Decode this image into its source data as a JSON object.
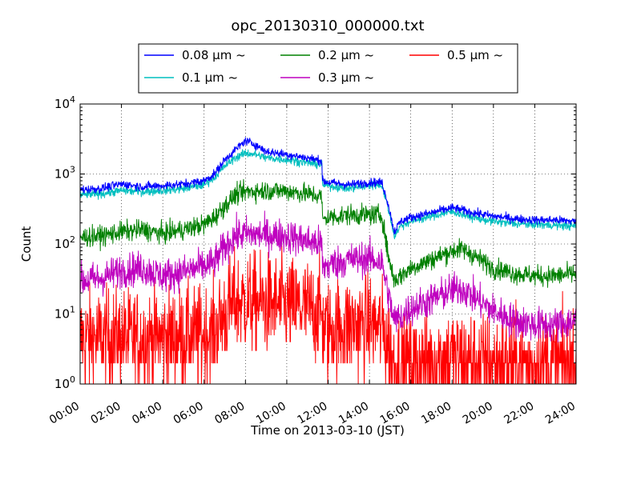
{
  "chart_data": {
    "type": "line",
    "title": "opc_20130310_000000.txt",
    "xlabel": "Time on 2013-03-10 (JST)",
    "ylabel": "Count",
    "x_range_hours": [
      0,
      24
    ],
    "x_ticks": [
      "00:00",
      "02:00",
      "04:00",
      "06:00",
      "08:00",
      "10:00",
      "12:00",
      "14:00",
      "16:00",
      "18:00",
      "20:00",
      "22:00",
      "24:00"
    ],
    "y_scale": "log",
    "ylim": [
      1,
      10000
    ],
    "y_ticks": [
      {
        "value": 1,
        "base": "10",
        "exp": "0"
      },
      {
        "value": 10,
        "base": "10",
        "exp": "1"
      },
      {
        "value": 100,
        "base": "10",
        "exp": "2"
      },
      {
        "value": 1000,
        "base": "10",
        "exp": "3"
      },
      {
        "value": 10000,
        "base": "10",
        "exp": "4"
      }
    ],
    "grid": true,
    "legend_position": "top-center, above plot",
    "series": [
      {
        "name": "0.08 μm ~",
        "color": "#0000ff",
        "noise": 0.03,
        "points": [
          [
            0,
            600
          ],
          [
            1,
            620
          ],
          [
            2,
            720
          ],
          [
            3,
            660
          ],
          [
            4,
            680
          ],
          [
            5,
            720
          ],
          [
            6,
            800
          ],
          [
            6.5,
            1000
          ],
          [
            7,
            1600
          ],
          [
            7.5,
            2200
          ],
          [
            8,
            3000
          ],
          [
            8.5,
            2600
          ],
          [
            9,
            2100
          ],
          [
            10,
            1900
          ],
          [
            11,
            1700
          ],
          [
            11.7,
            1550
          ],
          [
            11.72,
            800
          ],
          [
            12,
            760
          ],
          [
            13,
            700
          ],
          [
            14,
            760
          ],
          [
            14.6,
            760
          ],
          [
            14.9,
            380
          ],
          [
            15.2,
            150
          ],
          [
            15.5,
            210
          ],
          [
            16,
            240
          ],
          [
            17,
            280
          ],
          [
            18,
            330
          ],
          [
            19,
            280
          ],
          [
            20,
            250
          ],
          [
            21,
            230
          ],
          [
            22,
            220
          ],
          [
            23,
            220
          ],
          [
            24,
            210
          ]
        ]
      },
      {
        "name": "0.1 μm ~",
        "color": "#00bfbf",
        "noise": 0.03,
        "points": [
          [
            0,
            500
          ],
          [
            1,
            520
          ],
          [
            2,
            580
          ],
          [
            3,
            560
          ],
          [
            4,
            580
          ],
          [
            5,
            620
          ],
          [
            6,
            700
          ],
          [
            6.5,
            900
          ],
          [
            7,
            1300
          ],
          [
            7.5,
            1700
          ],
          [
            8,
            2000
          ],
          [
            8.5,
            1900
          ],
          [
            9,
            1700
          ],
          [
            10,
            1600
          ],
          [
            11,
            1450
          ],
          [
            11.7,
            1350
          ],
          [
            11.72,
            700
          ],
          [
            12,
            680
          ],
          [
            13,
            620
          ],
          [
            14,
            680
          ],
          [
            14.6,
            700
          ],
          [
            14.9,
            330
          ],
          [
            15.2,
            130
          ],
          [
            15.5,
            180
          ],
          [
            16,
            210
          ],
          [
            17,
            250
          ],
          [
            18,
            290
          ],
          [
            19,
            240
          ],
          [
            20,
            210
          ],
          [
            21,
            195
          ],
          [
            22,
            190
          ],
          [
            23,
            185
          ],
          [
            24,
            180
          ]
        ]
      },
      {
        "name": "0.2 μm ~",
        "color": "#008000",
        "noise": 0.07,
        "points": [
          [
            0,
            125
          ],
          [
            1,
            130
          ],
          [
            2,
            150
          ],
          [
            3,
            160
          ],
          [
            4,
            140
          ],
          [
            5,
            160
          ],
          [
            6,
            190
          ],
          [
            6.5,
            240
          ],
          [
            7,
            350
          ],
          [
            7.5,
            500
          ],
          [
            8,
            560
          ],
          [
            9,
            580
          ],
          [
            10,
            570
          ],
          [
            11,
            520
          ],
          [
            11.7,
            480
          ],
          [
            11.72,
            220
          ],
          [
            12,
            240
          ],
          [
            13,
            260
          ],
          [
            14,
            260
          ],
          [
            14.6,
            260
          ],
          [
            14.9,
            70
          ],
          [
            15.2,
            30
          ],
          [
            15.5,
            35
          ],
          [
            16,
            45
          ],
          [
            17,
            60
          ],
          [
            18,
            80
          ],
          [
            18.5,
            85
          ],
          [
            19,
            70
          ],
          [
            20,
            45
          ],
          [
            21,
            38
          ],
          [
            22,
            35
          ],
          [
            23,
            35
          ],
          [
            24,
            38
          ]
        ]
      },
      {
        "name": "0.3 μm ~",
        "color": "#bf00bf",
        "noise": 0.12,
        "points": [
          [
            0,
            30
          ],
          [
            1,
            32
          ],
          [
            2,
            42
          ],
          [
            3,
            45
          ],
          [
            4,
            35
          ],
          [
            5,
            40
          ],
          [
            6,
            48
          ],
          [
            6.5,
            55
          ],
          [
            7,
            90
          ],
          [
            7.5,
            130
          ],
          [
            8,
            140
          ],
          [
            9,
            135
          ],
          [
            10,
            130
          ],
          [
            11,
            110
          ],
          [
            11.7,
            100
          ],
          [
            11.72,
            45
          ],
          [
            12,
            50
          ],
          [
            13,
            60
          ],
          [
            14,
            62
          ],
          [
            14.6,
            55
          ],
          [
            14.9,
            20
          ],
          [
            15.2,
            8
          ],
          [
            15.5,
            9
          ],
          [
            16,
            12
          ],
          [
            17,
            16
          ],
          [
            18,
            22
          ],
          [
            18.5,
            23
          ],
          [
            19,
            18
          ],
          [
            20,
            11
          ],
          [
            21,
            8
          ],
          [
            22,
            7
          ],
          [
            23,
            7
          ],
          [
            24,
            8
          ]
        ]
      },
      {
        "name": "0.5 μm ~",
        "color": "#ff0000",
        "noise": 0.35,
        "points": [
          [
            0,
            4.5
          ],
          [
            2,
            4.5
          ],
          [
            4,
            4.5
          ],
          [
            6,
            5
          ],
          [
            6.5,
            5.5
          ],
          [
            7,
            10
          ],
          [
            7.5,
            15
          ],
          [
            8,
            15
          ],
          [
            9,
            14
          ],
          [
            10,
            13
          ],
          [
            11,
            12
          ],
          [
            11.7,
            11
          ],
          [
            11.72,
            6
          ],
          [
            12,
            6
          ],
          [
            13,
            7
          ],
          [
            14,
            7
          ],
          [
            14.6,
            6.5
          ],
          [
            14.9,
            4
          ],
          [
            15.2,
            2
          ],
          [
            16,
            2
          ],
          [
            18,
            2.5
          ],
          [
            20,
            2
          ],
          [
            22,
            2
          ],
          [
            24,
            2
          ]
        ]
      }
    ]
  }
}
